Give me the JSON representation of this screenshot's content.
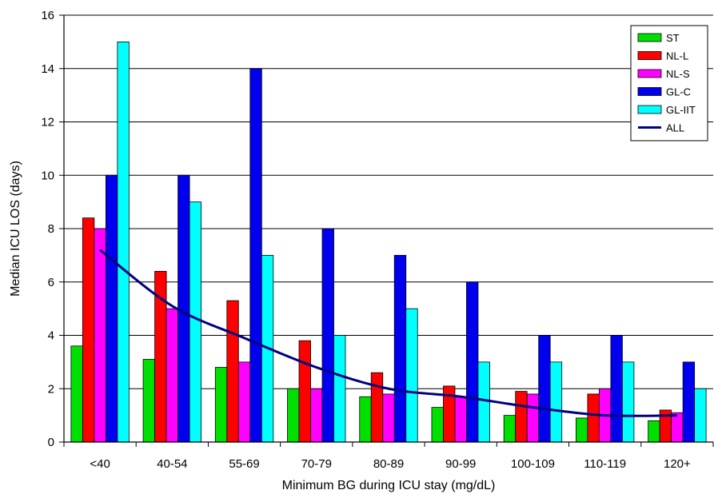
{
  "chart_data": {
    "type": "bar",
    "title": "",
    "xlabel": "Minimum BG during ICU stay (mg/dL)",
    "ylabel": "Median ICU LOS (days)",
    "ylim": [
      0,
      16
    ],
    "yticks": [
      0,
      2,
      4,
      6,
      8,
      10,
      12,
      14,
      16
    ],
    "grid": "horizontal",
    "legend_position": "top-right",
    "categories": [
      "<40",
      "40-54",
      "55-69",
      "70-79",
      "80-89",
      "90-99",
      "100-109",
      "110-119",
      "120+"
    ],
    "series": [
      {
        "name": "ST",
        "color": "#00e000",
        "values": [
          3.6,
          3.1,
          2.8,
          2.0,
          1.7,
          1.3,
          1.0,
          0.9,
          0.8
        ]
      },
      {
        "name": "NL-L",
        "color": "#ff0000",
        "values": [
          8.4,
          6.4,
          5.3,
          3.8,
          2.6,
          2.1,
          1.9,
          1.8,
          1.2
        ]
      },
      {
        "name": "NL-S",
        "color": "#ff00ff",
        "values": [
          8.0,
          5.0,
          3.0,
          2.0,
          1.8,
          1.7,
          1.8,
          2.0,
          1.1
        ]
      },
      {
        "name": "GL-C",
        "color": "#0000ee",
        "values": [
          10,
          10,
          14,
          8,
          7,
          6,
          4,
          4,
          3
        ]
      },
      {
        "name": "GL-IIT",
        "color": "#00ffff",
        "values": [
          15,
          9,
          7,
          4,
          5,
          3,
          3,
          3,
          2
        ]
      }
    ],
    "line_series": {
      "name": "ALL",
      "color": "#000080",
      "values": [
        7.2,
        5.1,
        3.9,
        2.8,
        2.0,
        1.7,
        1.3,
        1.0,
        1.0
      ]
    }
  }
}
